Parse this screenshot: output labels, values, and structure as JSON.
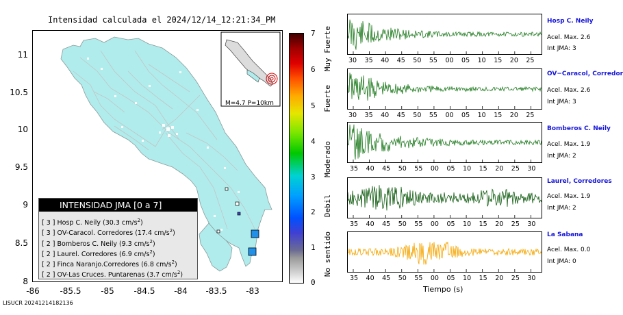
{
  "title": "Intensidad calculada el 2024/12/14_12:21:34_PM",
  "footer": "LISUCR 20241214182136",
  "map": {
    "y_ticks": [
      "11",
      "10.5",
      "10",
      "9.5",
      "9",
      "8.5",
      "8"
    ],
    "x_ticks": [
      "-86",
      "-85.5",
      "-85",
      "-84.5",
      "-84",
      "-83.5",
      "-83"
    ],
    "inset_label": "M=4.7 P=10km",
    "colors": {
      "land": "#b0ecec",
      "sea": "#ffffff",
      "roads": "#c8c8c8",
      "station": "#2090e8",
      "epicenter": "#d40000"
    }
  },
  "legend": {
    "title": "INTENSIDAD JMA [0 a 7]",
    "rows": [
      {
        "level": "[ 3 ]",
        "text": "Hosp C. Neily (30.3 cm/s",
        "sup": "2",
        "end": ")"
      },
      {
        "level": "[ 3 ]",
        "text": "OV-Caracol. Corredores (17.4 cm/s",
        "sup": "2",
        "end": ")"
      },
      {
        "level": "[ 2 ]",
        "text": "Bomberos C. Neily (9.3 cm/s",
        "sup": "2",
        "end": ")"
      },
      {
        "level": "[ 2 ]",
        "text": "Laurel. Corredores (6.9 cm/s",
        "sup": "2",
        "end": ")"
      },
      {
        "level": "[ 2 ]",
        "text": "Finca Naranjo.Corredores (6.8 cm/s",
        "sup": "2",
        "end": ")"
      },
      {
        "level": "[ 2 ]",
        "text": "OV-Las Cruces. Puntarenas (3.7 cm/s",
        "sup": "2",
        "end": ")"
      }
    ]
  },
  "colorbar": {
    "ticks": [
      "7",
      "6",
      "5",
      "4",
      "3",
      "2",
      "1",
      "0"
    ],
    "labels": [
      "Muy Fuerte",
      "Fuerte",
      "Moderado",
      "Debil",
      "No sentido"
    ]
  },
  "traces": [
    {
      "name": "Hosp C. Neily",
      "acc": "Acel. Max. 2.6",
      "int": "Int JMA: 3",
      "color": "#1e7a1e",
      "ticks": [
        "30",
        "35",
        "40",
        "45",
        "50",
        "55",
        "00",
        "05",
        "10",
        "15",
        "20",
        "25"
      ]
    },
    {
      "name": "OV−Caracol, Corredore",
      "acc": "Acel. Max. 2.6",
      "int": "Int JMA: 3",
      "color": "#1e7a1e",
      "ticks": [
        "30",
        "35",
        "40",
        "45",
        "50",
        "55",
        "00",
        "05",
        "10",
        "15",
        "20",
        "25"
      ]
    },
    {
      "name": "Bomberos C. Neily",
      "acc": "Acel. Max. 1.9",
      "int": "Int JMA: 2",
      "color": "#1e7a1e",
      "ticks": [
        "35",
        "40",
        "45",
        "50",
        "55",
        "00",
        "05",
        "10",
        "15",
        "20",
        "25",
        "30"
      ]
    },
    {
      "name": "Laurel, Corredores",
      "acc": "Acel. Max. 1.9",
      "int": "Int JMA: 2",
      "color": "#0f5a0f",
      "ticks": [
        "35",
        "40",
        "45",
        "50",
        "55",
        "00",
        "05",
        "10",
        "15",
        "20",
        "25",
        "30"
      ]
    },
    {
      "name": "La Sabana",
      "acc": "Acel. Max. 0.0",
      "int": "Int JMA: 0",
      "color": "#f5a500",
      "ticks": [
        "35",
        "40",
        "45",
        "50",
        "55",
        "00",
        "05",
        "10",
        "15",
        "20",
        "25",
        "30"
      ]
    }
  ],
  "xlabel": "Tiempo (s)"
}
